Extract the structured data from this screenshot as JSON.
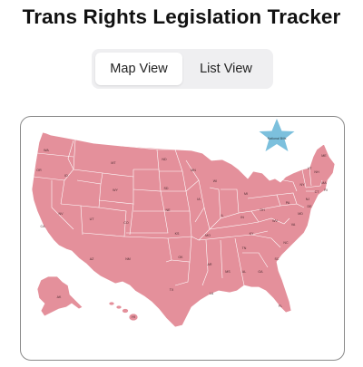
{
  "header": {
    "title": "Trans Rights Legislation Tracker"
  },
  "view_toggle": {
    "options": [
      {
        "label": "Map View",
        "selected": true
      },
      {
        "label": "List View",
        "selected": false
      }
    ]
  },
  "map": {
    "state_color": "#e4909b",
    "national_marker": {
      "label": "National Bills",
      "icon": "star-icon",
      "color": "#7cc0dd"
    },
    "states": {
      "WA": "WA",
      "OR": "OR",
      "CA": "CA",
      "ID": "ID",
      "NV": "NV",
      "AZ": "AZ",
      "UT": "UT",
      "MT": "MT",
      "WY": "WY",
      "CO": "CO",
      "NM": "NM",
      "ND": "ND",
      "SD": "SD",
      "NE": "NE",
      "KS": "KS",
      "OK": "OK",
      "TX": "TX",
      "MN": "MN",
      "IA": "IA",
      "MO": "MO",
      "AR": "AR",
      "LA": "LA",
      "WI": "WI",
      "IL": "IL",
      "MI": "MI",
      "IN": "IN",
      "OH": "OH",
      "KY": "KY",
      "TN": "TN",
      "MS": "MS",
      "AL": "AL",
      "GA": "GA",
      "FL": "FL",
      "SC": "SC",
      "NC": "NC",
      "VA": "VA",
      "WV": "WV",
      "PA": "PA",
      "NY": "NY",
      "VT": "VT",
      "NH": "NH",
      "ME": "ME",
      "MA": "MA",
      "CT": "CT",
      "RI": "RI",
      "NJ": "NJ",
      "DE": "DE",
      "MD": "MD",
      "AK": "AK",
      "HI": "HI"
    }
  }
}
